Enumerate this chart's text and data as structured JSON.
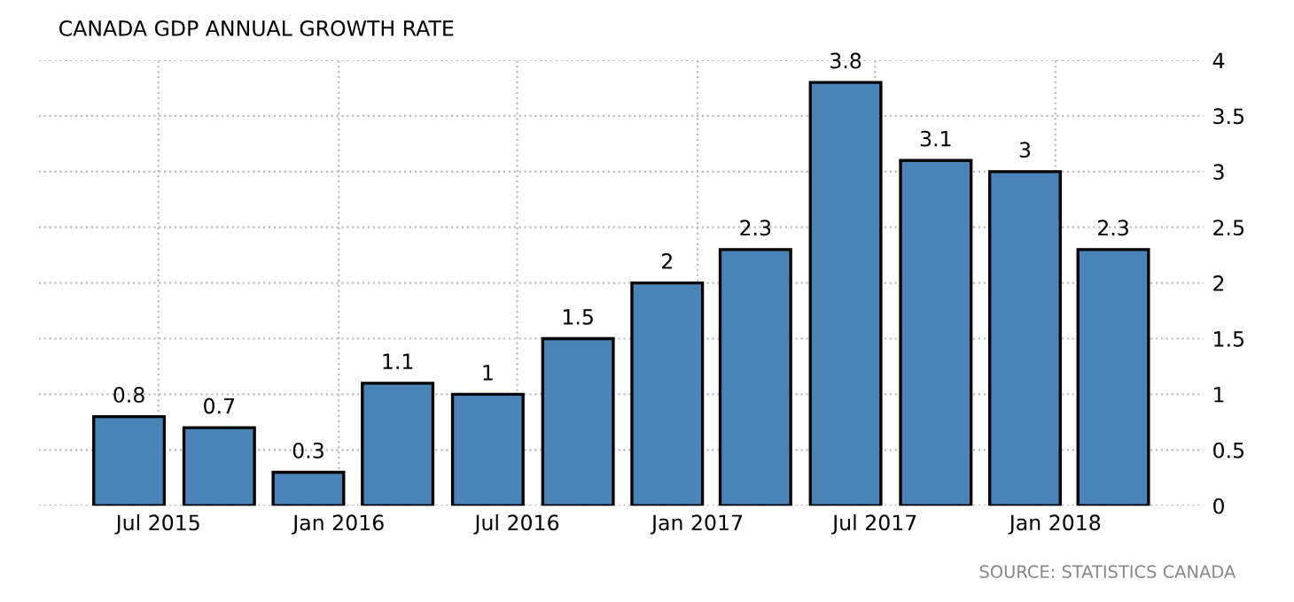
{
  "chart_data": {
    "type": "bar",
    "title": "CANADA GDP ANNUAL GROWTH RATE",
    "x": [
      "2015-06",
      "2015-09",
      "2015-12",
      "2016-03",
      "2016-06",
      "2016-09",
      "2016-12",
      "2017-03",
      "2017-06",
      "2017-09",
      "2017-12",
      "2018-03"
    ],
    "values": [
      0.8,
      0.7,
      0.3,
      1.1,
      1,
      1.5,
      2,
      2.3,
      3.8,
      3.1,
      3,
      2.3
    ],
    "color": "#4a83b8",
    "data_labels": true,
    "xlim": [
      "2015-03",
      "2018-06"
    ],
    "xticks": [
      {
        "value": "2015-07",
        "label": "Jul 2015"
      },
      {
        "value": "2016-01",
        "label": "Jan 2016"
      },
      {
        "value": "2016-07",
        "label": "Jul 2016"
      },
      {
        "value": "2017-01",
        "label": "Jan 2017"
      },
      {
        "value": "2017-07",
        "label": "Jul 2017"
      },
      {
        "value": "2018-01",
        "label": "Jan 2018"
      }
    ],
    "ylim": [
      0,
      4
    ],
    "yticks": [
      0,
      0.5,
      1,
      1.5,
      2,
      2.5,
      3,
      3.5,
      4
    ],
    "grid": true,
    "annotations": [
      "SOURCE: STATISTICS CANADA"
    ]
  }
}
